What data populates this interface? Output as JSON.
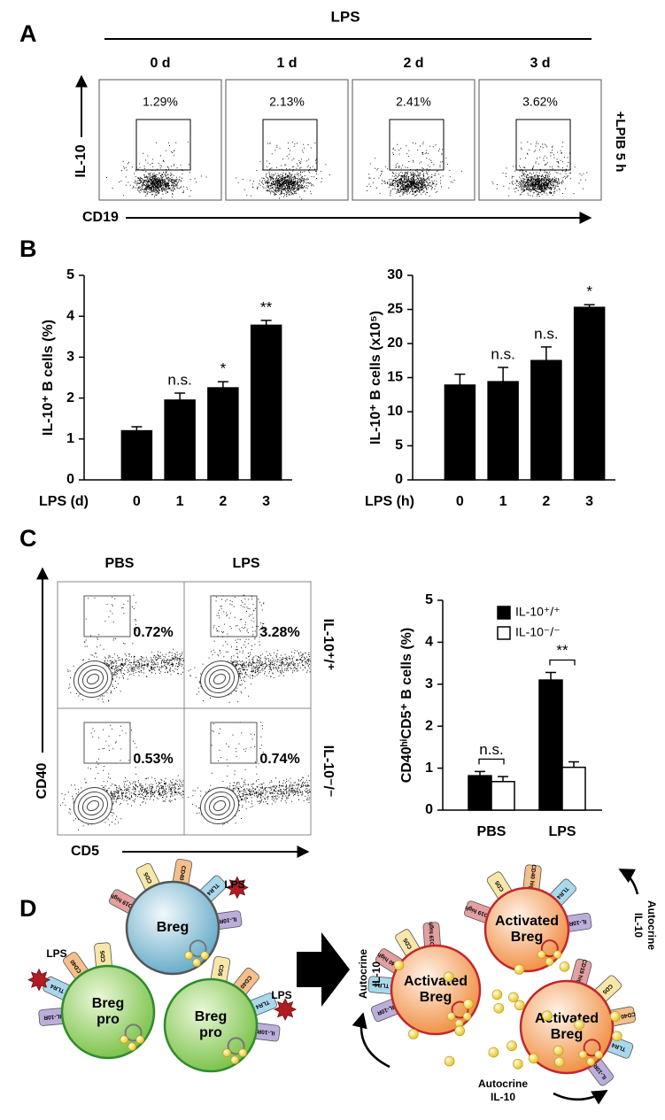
{
  "panel_a": {
    "label": "A",
    "treatment": "LPS",
    "columns": [
      "0 d",
      "1 d",
      "2 d",
      "3 d"
    ],
    "percents": [
      "1.29%",
      "2.13%",
      "2.41%",
      "3.62%"
    ],
    "y_axis": "IL-10",
    "x_axis": "CD19",
    "side_label": "+LPIB 5 h"
  },
  "panel_b": {
    "label": "B"
  },
  "panel_c": {
    "label": "C",
    "columns": [
      "PBS",
      "LPS"
    ],
    "rows": [
      "IL-10⁺/⁺",
      "IL-10⁻/⁻"
    ],
    "percents": [
      [
        "0.72%",
        "3.28%"
      ],
      [
        "0.53%",
        "0.74%"
      ]
    ],
    "y_axis": "CD40",
    "x_axis": "CD5"
  },
  "panel_d": {
    "label": "D",
    "cells": [
      {
        "label": [
          "Breg"
        ],
        "lps": "LPS",
        "receptors": [
          {
            "label": "CD19 high",
            "color": "#e3a0a0"
          },
          {
            "label": "CD5",
            "color": "#f7e7a9"
          },
          {
            "label": "CD40",
            "color": "#f4bf8c"
          },
          {
            "label": "TLR4",
            "color": "#a9d8ec"
          },
          {
            "label": "IL-10R",
            "color": "#bcaedb"
          }
        ]
      },
      {
        "label": [
          "Breg",
          "pro"
        ],
        "lps": "LPS",
        "receptors": [
          {
            "label": "IL-10R",
            "color": "#bcaedb"
          },
          {
            "label": "TLR4",
            "color": "#a9d8ec"
          },
          {
            "label": "CD40",
            "color": "#f4bf8c"
          },
          {
            "label": "CD5",
            "color": "#f7e7a9"
          }
        ]
      },
      {
        "label": [
          "Breg",
          "pro"
        ],
        "lps": "LPS",
        "receptors": [
          {
            "label": "CD5",
            "color": "#f7e7a9"
          },
          {
            "label": "CD40",
            "color": "#f4bf8c"
          },
          {
            "label": "TLR4",
            "color": "#a9d8ec"
          },
          {
            "label": "IL-10R",
            "color": "#bcaedb"
          }
        ]
      },
      {
        "label": [
          "Activated",
          "Breg"
        ],
        "receptors": [
          {
            "label": "CD19 high",
            "color": "#e3a0a0"
          },
          {
            "label": "CD5",
            "color": "#f7e7a9"
          },
          {
            "label": "CD40 high",
            "color": "#f4bf8c"
          },
          {
            "label": "TLR4",
            "color": "#a9d8ec"
          },
          {
            "label": "IL-10R",
            "color": "#bcaedb"
          }
        ]
      },
      {
        "label": [
          "Activated",
          "Breg"
        ],
        "receptors": [
          {
            "label": "IL-10R",
            "color": "#bcaedb"
          },
          {
            "label": "TLR4",
            "color": "#a9d8ec"
          },
          {
            "label": "CD40 high",
            "color": "#e3a0a0"
          },
          {
            "label": "CD5",
            "color": "#f7e7a9"
          },
          {
            "label": "CD19 high",
            "color": "#e3a0a0"
          }
        ]
      },
      {
        "label": [
          "Activated",
          "Breg"
        ],
        "receptors": [
          {
            "label": "CD19 high",
            "color": "#e3a0a0"
          },
          {
            "label": "CD5",
            "color": "#f7e7a9"
          },
          {
            "label": "CD40 high",
            "color": "#f4bf8c"
          },
          {
            "label": "TLR4",
            "color": "#a9d8ec"
          },
          {
            "label": "IL-10R",
            "color": "#bcaedb"
          }
        ]
      }
    ],
    "autocrine": [
      [
        "Autocrine",
        "IL-10"
      ],
      [
        "Autocrine",
        "IL-10"
      ],
      [
        "Autocrine",
        "IL-10"
      ]
    ]
  },
  "chart_data": [
    {
      "type": "bar",
      "ylabel": "IL-10⁺ B cells (%)",
      "xlabel": "LPS (d)",
      "categories": [
        "0",
        "1",
        "2",
        "3"
      ],
      "series": [
        {
          "color": "#000000",
          "values": [
            1.2,
            1.95,
            2.25,
            3.78
          ],
          "errors": [
            0.1,
            0.17,
            0.15,
            0.12
          ],
          "annotations": [
            null,
            "n.s.",
            "*",
            "**"
          ]
        }
      ],
      "ylim": [
        0,
        5
      ],
      "yticks": [
        0,
        1,
        2,
        3,
        4,
        5
      ]
    },
    {
      "type": "bar",
      "ylabel": "IL-10⁺ B cells (x10⁵)",
      "xlabel": "LPS (h)",
      "categories": [
        "0",
        "1",
        "2",
        "3"
      ],
      "series": [
        {
          "color": "#000000",
          "values": [
            13.9,
            14.4,
            17.5,
            25.3
          ],
          "errors": [
            1.6,
            2.1,
            2.0,
            0.4
          ],
          "annotations": [
            null,
            "n.s.",
            "n.s.",
            "*"
          ]
        }
      ],
      "ylim": [
        0,
        30
      ],
      "yticks": [
        0,
        5,
        10,
        15,
        20,
        25,
        30
      ]
    },
    {
      "type": "grouped_bar",
      "ylabel": "CD40ʰⁱCD5⁺ B cells (%)",
      "categories": [
        "PBS",
        "LPS"
      ],
      "series": [
        {
          "name": "IL-10⁺/⁺",
          "color": "#000000",
          "values": [
            0.82,
            3.1
          ],
          "errors": [
            0.1,
            0.18
          ]
        },
        {
          "name": "IL-10⁻/⁻",
          "color": "#ffffff",
          "values": [
            0.68,
            1.02
          ],
          "errors": [
            0.12,
            0.13
          ]
        }
      ],
      "annotations": [
        "n.s.",
        "**"
      ],
      "ylim": [
        0,
        5
      ],
      "yticks": [
        0,
        1,
        2,
        3,
        4,
        5
      ]
    }
  ]
}
